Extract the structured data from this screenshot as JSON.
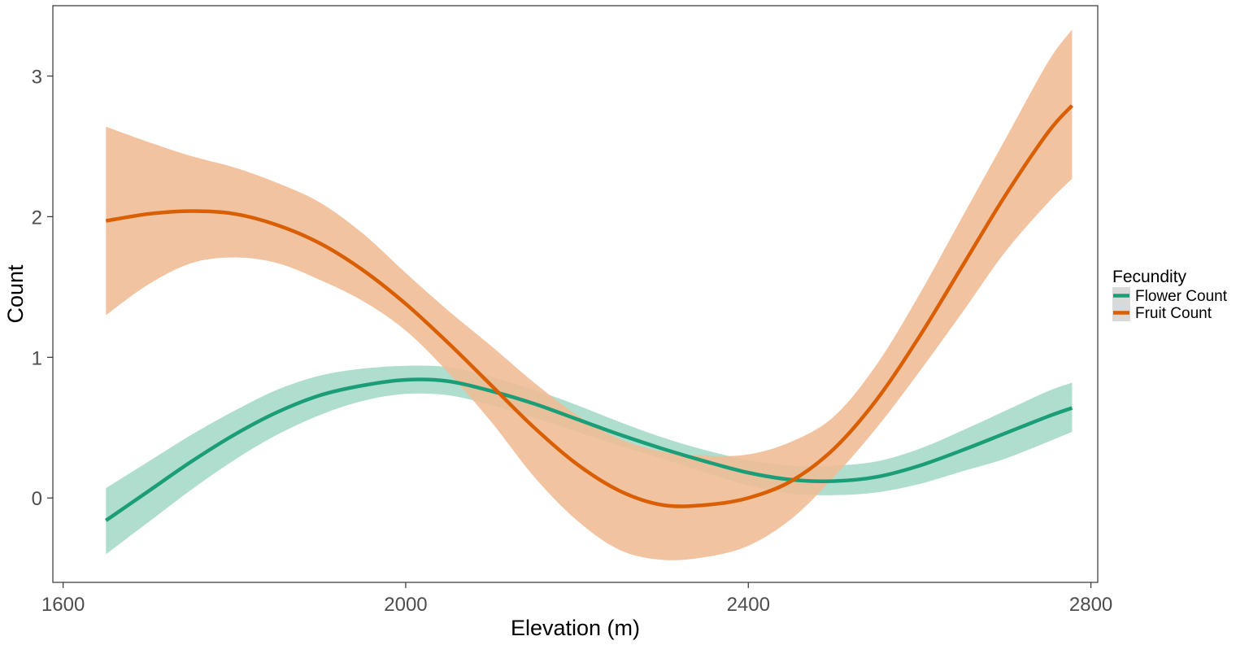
{
  "chart_data": {
    "type": "line",
    "xlabel": "Elevation (m)",
    "ylabel": "Count",
    "xlim": [
      1588,
      2808
    ],
    "ylim": [
      -0.6,
      3.5
    ],
    "xticks": [
      1600,
      2000,
      2400,
      2800
    ],
    "yticks": [
      0,
      1,
      2,
      3
    ],
    "grid": false,
    "legend": {
      "title": "Fecundity",
      "position": "right"
    },
    "x": [
      1650,
      1700,
      1750,
      1800,
      1850,
      1900,
      1950,
      2000,
      2050,
      2100,
      2150,
      2200,
      2250,
      2300,
      2350,
      2400,
      2450,
      2500,
      2550,
      2600,
      2650,
      2700,
      2750,
      2778
    ],
    "series": [
      {
        "name": "Flower Count",
        "color": "#1b9e77",
        "fill": "#a6d9c9",
        "values": [
          -0.16,
          0.05,
          0.26,
          0.45,
          0.61,
          0.73,
          0.8,
          0.84,
          0.83,
          0.76,
          0.67,
          0.56,
          0.45,
          0.35,
          0.26,
          0.18,
          0.13,
          0.12,
          0.15,
          0.23,
          0.34,
          0.46,
          0.58,
          0.64
        ],
        "lower": [
          -0.4,
          -0.17,
          0.06,
          0.27,
          0.45,
          0.59,
          0.69,
          0.74,
          0.73,
          0.66,
          0.57,
          0.47,
          0.37,
          0.28,
          0.18,
          0.09,
          0.03,
          0.02,
          0.04,
          0.1,
          0.19,
          0.28,
          0.4,
          0.47
        ],
        "upper": [
          0.07,
          0.26,
          0.45,
          0.62,
          0.77,
          0.87,
          0.92,
          0.94,
          0.93,
          0.86,
          0.77,
          0.66,
          0.54,
          0.43,
          0.34,
          0.27,
          0.23,
          0.23,
          0.26,
          0.35,
          0.48,
          0.62,
          0.76,
          0.82
        ]
      },
      {
        "name": "Fruit Count",
        "color": "#d95f02",
        "fill": "#f0bd97",
        "values": [
          1.97,
          2.02,
          2.04,
          2.02,
          1.94,
          1.81,
          1.62,
          1.38,
          1.1,
          0.8,
          0.5,
          0.24,
          0.05,
          -0.05,
          -0.05,
          0.0,
          0.12,
          0.35,
          0.7,
          1.15,
          1.65,
          2.15,
          2.6,
          2.79
        ],
        "lower": [
          1.3,
          1.52,
          1.67,
          1.71,
          1.67,
          1.55,
          1.4,
          1.19,
          0.89,
          0.54,
          0.15,
          -0.16,
          -0.37,
          -0.44,
          -0.42,
          -0.34,
          -0.15,
          0.15,
          0.5,
          0.9,
          1.32,
          1.75,
          2.1,
          2.27
        ],
        "upper": [
          2.64,
          2.53,
          2.43,
          2.35,
          2.24,
          2.1,
          1.88,
          1.6,
          1.33,
          1.08,
          0.82,
          0.59,
          0.42,
          0.33,
          0.3,
          0.31,
          0.4,
          0.58,
          0.95,
          1.45,
          2.0,
          2.55,
          3.1,
          3.33
        ]
      }
    ]
  }
}
